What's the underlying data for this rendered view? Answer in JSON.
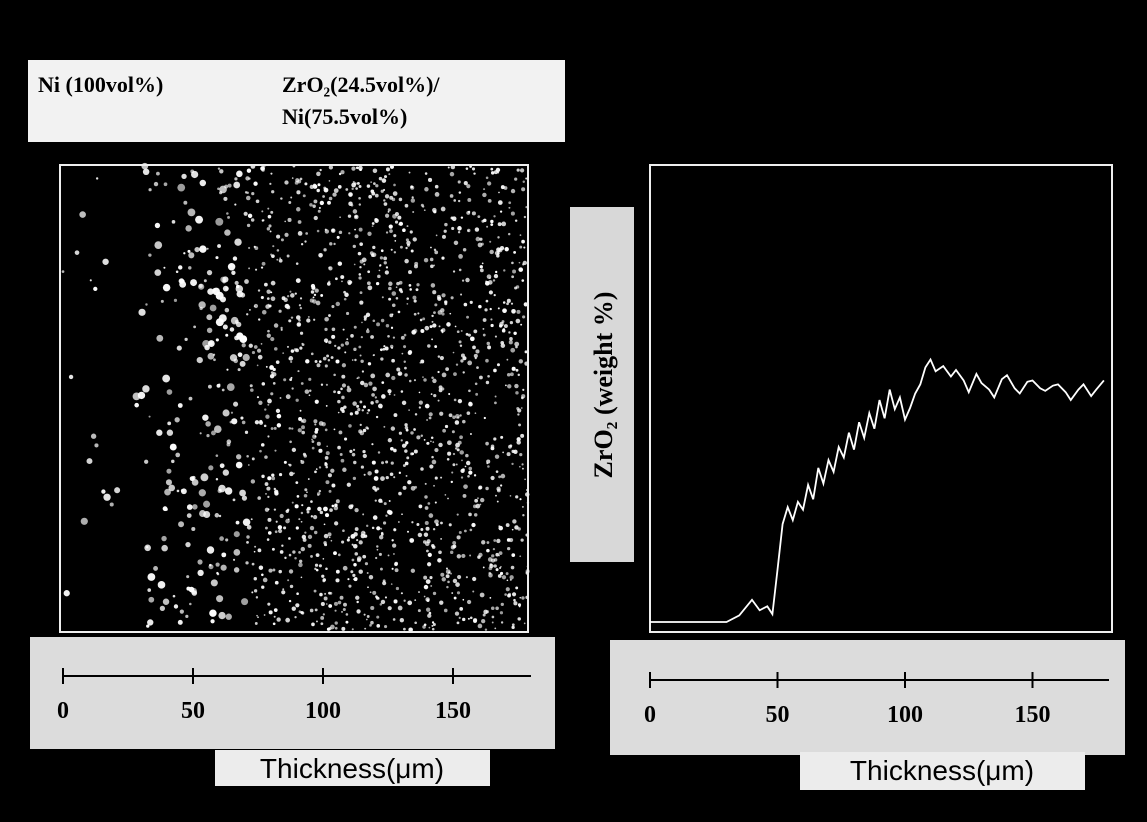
{
  "chart_data": [
    {
      "type": "image",
      "annotations": [
        "Ni (100vol%)",
        "ZrO₂(24.5vol%)/",
        "Ni(75.5vol%)"
      ],
      "xlabel": "Thickness(μm)",
      "xlim": [
        0,
        180
      ],
      "xticks": [
        0,
        50,
        100,
        150
      ]
    },
    {
      "type": "line",
      "ylabel": "ZrO₂ (weight %)",
      "xlabel": "Thickness(μm)",
      "xlim": [
        0,
        180
      ],
      "xticks": [
        0,
        50,
        100,
        150
      ],
      "ylim": [
        0,
        35
      ],
      "x": [
        0,
        30,
        35,
        40,
        43,
        46,
        48,
        50,
        52,
        54,
        56,
        58,
        60,
        62,
        64,
        66,
        68,
        70,
        72,
        74,
        76,
        78,
        80,
        82,
        84,
        86,
        88,
        90,
        92,
        94,
        96,
        98,
        100,
        102,
        104,
        106,
        108,
        110,
        112,
        115,
        118,
        120,
        123,
        125,
        128,
        130,
        133,
        135,
        138,
        140,
        143,
        145,
        148,
        150,
        153,
        155,
        158,
        160,
        163,
        165,
        168,
        170,
        173,
        175,
        178
      ],
      "series": [
        {
          "color": "#ffffff",
          "values": [
            0,
            0,
            0.5,
            1.7,
            0.9,
            1.2,
            0.6,
            4,
            7.5,
            8.8,
            7.8,
            9.2,
            8.6,
            10.5,
            9.4,
            11.8,
            10.6,
            12.4,
            11.5,
            13.4,
            12.6,
            14.5,
            13.2,
            15.3,
            14.1,
            16,
            14.8,
            17,
            15.6,
            17.8,
            16.3,
            17.2,
            15.5,
            16.4,
            17.5,
            18.2,
            19.5,
            20.1,
            19.2,
            19.6,
            18.8,
            19.3,
            18.5,
            17.6,
            19,
            18.3,
            17.8,
            17.2,
            18.6,
            18.9,
            17.9,
            17.5,
            18.4,
            18.5,
            17.9,
            17.7,
            18.1,
            18.2,
            17.6,
            17.0,
            17.8,
            18.2,
            17.3,
            17.8,
            18.5
          ]
        }
      ]
    }
  ]
}
